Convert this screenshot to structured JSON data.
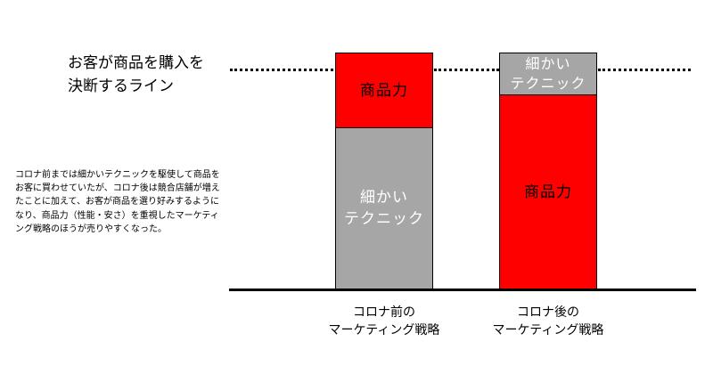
{
  "heading": "お客が商品を購入を\n決断するライン",
  "note": "コロナ前までは細かいテクニックを駆使して商品をお客に買わせていたが、コロナ後は競合店舗が増えたことに加えて、お客が商品を選り好みするようになり、商品力（性能・安さ）を重視したマーケティング戦略のほうが売りやすくなった。",
  "columns": [
    {
      "label": "コロナ前の\nマーケティング戦略",
      "top_segment": {
        "label": "商品力",
        "color": "#ff0000"
      },
      "bottom_segment": {
        "label": "細かい\nテクニック",
        "color": "#a6a6a6"
      }
    },
    {
      "label": "コロナ後の\nマーケティング戦略",
      "top_segment": {
        "label": "細かい\nテクニック",
        "color": "#a6a6a6"
      },
      "bottom_segment": {
        "label": "商品力",
        "color": "#ff0000"
      }
    }
  ]
}
